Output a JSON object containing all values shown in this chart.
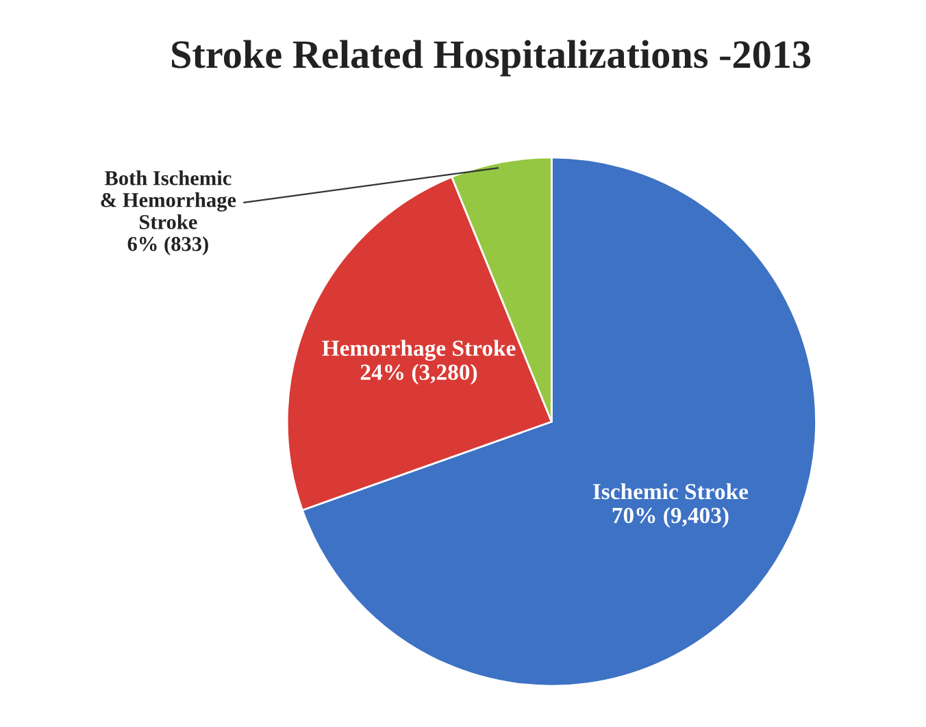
{
  "chart_data": {
    "type": "pie",
    "title": "Stroke Related Hospitalizations -2013",
    "categories": [
      "Ischemic Stroke",
      "Hemorrhage Stroke",
      "Both Ischemic\n& Hemorrhage\nStroke"
    ],
    "values": [
      9403,
      3280,
      833
    ],
    "value_labels": [
      "70% (9,403)",
      "24% (3,280)",
      "6% (833)"
    ],
    "colors": [
      "#3d72c4",
      "#d93a35",
      "#95c742"
    ]
  }
}
